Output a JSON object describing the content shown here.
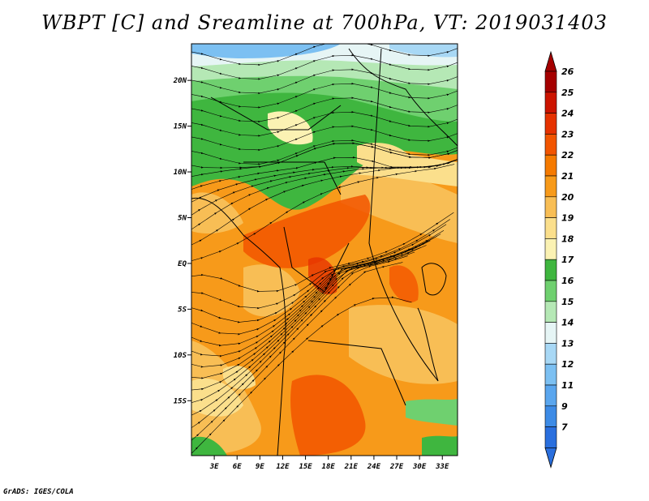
{
  "title": "WBPT [C] and Sreamline at 700hPa, VT: 2019031403",
  "credit": "GrADS: IGES/COLA",
  "map": {
    "lat_range": [
      -21,
      24
    ],
    "lon_range": [
      0,
      35
    ],
    "lat_ticks": [
      {
        "value": 20,
        "label": "20N"
      },
      {
        "value": 15,
        "label": "15N"
      },
      {
        "value": 10,
        "label": "10N"
      },
      {
        "value": 5,
        "label": "5N"
      },
      {
        "value": 0,
        "label": "EQ"
      },
      {
        "value": -5,
        "label": "5S"
      },
      {
        "value": -10,
        "label": "10S"
      },
      {
        "value": -15,
        "label": "15S"
      }
    ],
    "lon_ticks": [
      {
        "value": 3,
        "label": "3E"
      },
      {
        "value": 6,
        "label": "6E"
      },
      {
        "value": 9,
        "label": "9E"
      },
      {
        "value": 12,
        "label": "12E"
      },
      {
        "value": 15,
        "label": "15E"
      },
      {
        "value": 18,
        "label": "18E"
      },
      {
        "value": 21,
        "label": "21E"
      },
      {
        "value": 24,
        "label": "24E"
      },
      {
        "value": 27,
        "label": "27E"
      },
      {
        "value": 30,
        "label": "30E"
      },
      {
        "value": 33,
        "label": "33E"
      }
    ]
  },
  "colorbar": {
    "levels": [
      {
        "label": "26",
        "color": "#a50000"
      },
      {
        "label": "25",
        "color": "#cc1400"
      },
      {
        "label": "24",
        "color": "#e63200"
      },
      {
        "label": "23",
        "color": "#f25500"
      },
      {
        "label": "22",
        "color": "#f57a00"
      },
      {
        "label": "21",
        "color": "#f79a1a"
      },
      {
        "label": "20",
        "color": "#f8be55"
      },
      {
        "label": "19",
        "color": "#fbdf8c"
      },
      {
        "label": "18",
        "color": "#fbf2b3"
      },
      {
        "label": "17",
        "color": "#3fb63f"
      },
      {
        "label": "16",
        "color": "#6fd06f"
      },
      {
        "label": "15",
        "color": "#b5e8b5"
      },
      {
        "label": "14",
        "color": "#e6f5f5"
      },
      {
        "label": "13",
        "color": "#a8d8f5"
      },
      {
        "label": "12",
        "color": "#7cc0f2"
      },
      {
        "label": "11",
        "color": "#5aa6ee"
      },
      {
        "label": "9",
        "color": "#3d8be6"
      },
      {
        "label": "7",
        "color": "#2a6fde"
      }
    ],
    "bottom_color": "#2a6fde"
  }
}
